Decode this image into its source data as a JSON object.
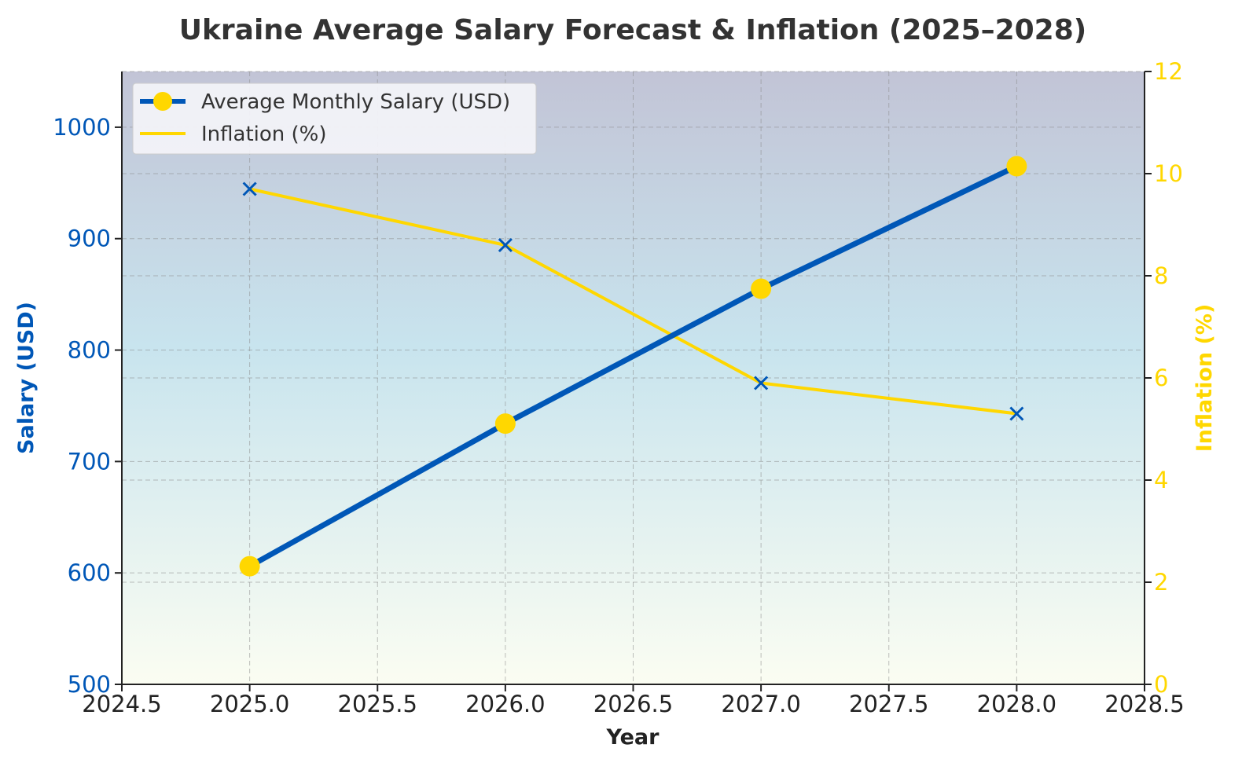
{
  "chart_data": {
    "type": "line",
    "title": "Ukraine Average Salary Forecast & Inflation (2025–2028)",
    "xlabel": "Year",
    "ylabel_left": "Salary (USD)",
    "ylabel_right": "Inflation (%)",
    "x": [
      2025,
      2026,
      2027,
      2028
    ],
    "xlim": [
      2024.5,
      2028.5
    ],
    "x_ticks": [
      2024.5,
      2025.0,
      2025.5,
      2026.0,
      2026.5,
      2027.0,
      2027.5,
      2028.0,
      2028.5
    ],
    "x_tick_labels": [
      "2024.5",
      "2025.0",
      "2025.5",
      "2026.0",
      "2026.5",
      "2027.0",
      "2027.5",
      "2028.0",
      "2028.5"
    ],
    "ylim_left": [
      500,
      1050
    ],
    "y_ticks_left": [
      500,
      600,
      700,
      800,
      900,
      1000
    ],
    "ylim_right": [
      0,
      12
    ],
    "y_ticks_right": [
      0,
      2,
      4,
      6,
      8,
      10,
      12
    ],
    "grid": true,
    "legend_position": "top-left",
    "series": [
      {
        "name": "Average Monthly Salary (USD)",
        "axis": "left",
        "values": [
          606,
          734,
          855,
          965
        ],
        "color": "#0057B7",
        "marker": "circle",
        "marker_color": "#FFD700"
      },
      {
        "name": "Inflation (%)",
        "axis": "right",
        "values": [
          9.7,
          8.6,
          5.9,
          5.3
        ],
        "color": "#FFD700",
        "marker": "x",
        "marker_color": "#0057B7"
      }
    ],
    "colors": {
      "salary_axis": "#0057B7",
      "inflation_axis": "#FFD700",
      "background_top": "#C2C4D6",
      "background_mid": "#C8E4EE",
      "background_bottom": "#FBFDF2"
    }
  }
}
